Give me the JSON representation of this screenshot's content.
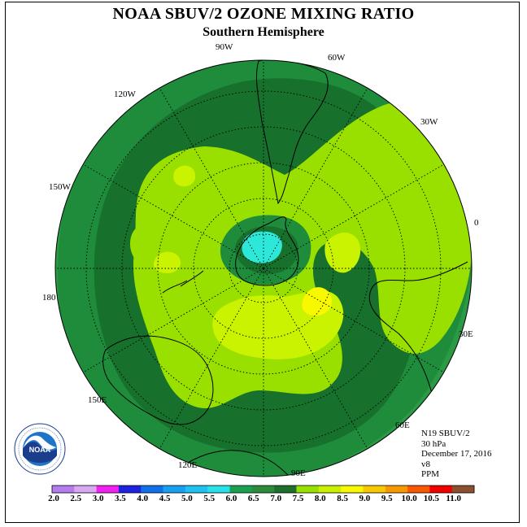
{
  "title": "NOAA SBUV/2 OZONE MIXING RATIO",
  "subtitle": "Southern Hemisphere",
  "longitude_labels": [
    "90W",
    "60W",
    "30W",
    "0",
    "30E",
    "60E",
    "90E",
    "120E",
    "150E",
    "180",
    "150W",
    "120W"
  ],
  "info": {
    "satellite": "N19 SBUV/2",
    "level": "30 hPa",
    "date": "December 17, 2016",
    "version": "v8",
    "units": "PPM"
  },
  "logo": {
    "text": "NOAA",
    "ring_text": "NATIONAL OCEANIC AND ATMOSPHERIC ADMINISTRATION · U.S. DEPARTMENT OF COMMERCE"
  },
  "colorbar": {
    "labels": [
      "2.0",
      "2.5",
      "3.0",
      "3.5",
      "4.0",
      "4.5",
      "5.0",
      "5.5",
      "6.0",
      "6.5",
      "7.0",
      "7.5",
      "8.0",
      "8.5",
      "9.0",
      "9.5",
      "10.0",
      "10.5",
      "11.0"
    ],
    "colors": [
      "#b57cf0",
      "#d8a8f0",
      "#f020f0",
      "#2020e0",
      "#1070e8",
      "#18a0f0",
      "#20c0f0",
      "#28e0e8",
      "#1aa050",
      "#2c8c3c",
      "#1e6e2c",
      "#98e000",
      "#c8f000",
      "#f8f800",
      "#f8c800",
      "#f89800",
      "#f85800",
      "#f00000",
      "#8c5030"
    ]
  },
  "map_colors": {
    "c60": "#2a9a44",
    "c65": "#1e8c3a",
    "c70": "#17702c",
    "c75": "#99e000",
    "c80": "#c9f300",
    "c85": "#f8f800",
    "c55": "#2de8d8"
  }
}
